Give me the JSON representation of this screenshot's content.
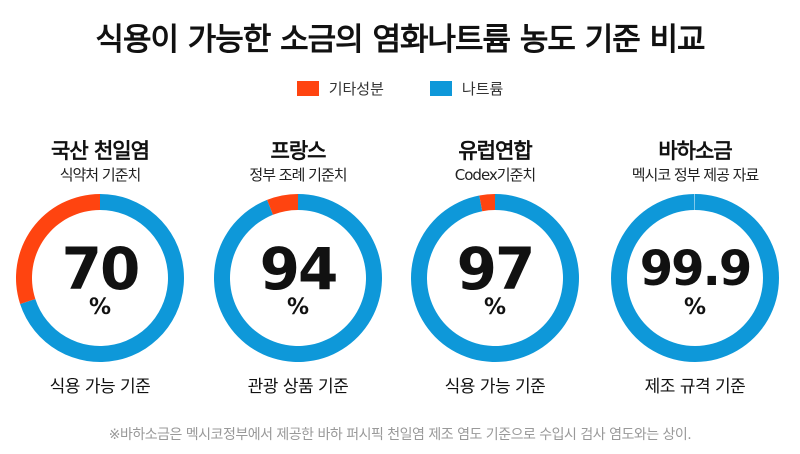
{
  "title": "식용이 가능한 소금의 염화나트륨 농도 기준 비교",
  "legend": [
    {
      "label": "기타성분",
      "color": "#ff4410"
    },
    {
      "label": "나트륨",
      "color": "#0e98d9"
    }
  ],
  "chart_data": [
    {
      "type": "pie",
      "title": "국산 천일염",
      "subtitle": "식약처 기준치",
      "value_label": "70",
      "unit": "%",
      "sodium": 70,
      "other": 30,
      "bottom_label": "식용 가능 기준"
    },
    {
      "type": "pie",
      "title": "프랑스",
      "subtitle": "정부 조례 기준치",
      "value_label": "94",
      "unit": "%",
      "sodium": 94,
      "other": 6,
      "bottom_label": "관광 상품 기준"
    },
    {
      "type": "pie",
      "title": "유럽연합",
      "subtitle": "Codex기준치",
      "value_label": "97",
      "unit": "%",
      "sodium": 97,
      "other": 3,
      "bottom_label": "식용 가능 기준"
    },
    {
      "type": "pie",
      "title": "바하소금",
      "subtitle": "멕시코 정부 제공 자료",
      "value_label": "99.9",
      "unit": "%",
      "sodium": 99.9,
      "other": 0.1,
      "bottom_label": "제조 규격 기준"
    }
  ],
  "footnote": "※바하소금은 멕시코정부에서 제공한 바하 퍼시픽 천일염 제조 염도 기준으로 수입시 검사 염도와는 상이."
}
